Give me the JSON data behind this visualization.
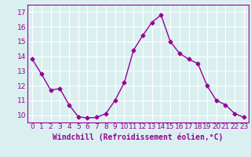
{
  "x": [
    0,
    1,
    2,
    3,
    4,
    5,
    6,
    7,
    8,
    9,
    10,
    11,
    12,
    13,
    14,
    15,
    16,
    17,
    18,
    19,
    20,
    21,
    22,
    23
  ],
  "y": [
    13.8,
    12.8,
    11.7,
    11.8,
    10.7,
    9.9,
    9.8,
    9.85,
    10.1,
    11.0,
    12.2,
    14.4,
    15.4,
    16.3,
    16.8,
    15.0,
    14.2,
    13.8,
    13.5,
    12.0,
    11.0,
    10.7,
    10.1,
    9.85
  ],
  "line_color": "#990099",
  "marker": "D",
  "marker_size": 2.5,
  "bg_color": "#daf0f0",
  "grid_color": "#ffffff",
  "xlabel": "Windchill (Refroidissement éolien,°C)",
  "xlabel_color": "#990099",
  "tick_color": "#990099",
  "ylim": [
    9.5,
    17.5
  ],
  "xlim": [
    -0.5,
    23.5
  ],
  "yticks": [
    10,
    11,
    12,
    13,
    14,
    15,
    16,
    17
  ],
  "xticks": [
    0,
    1,
    2,
    3,
    4,
    5,
    6,
    7,
    8,
    9,
    10,
    11,
    12,
    13,
    14,
    15,
    16,
    17,
    18,
    19,
    20,
    21,
    22,
    23
  ],
  "tick_fontsize": 6.5,
  "xlabel_fontsize": 7.0,
  "linewidth": 1.0
}
